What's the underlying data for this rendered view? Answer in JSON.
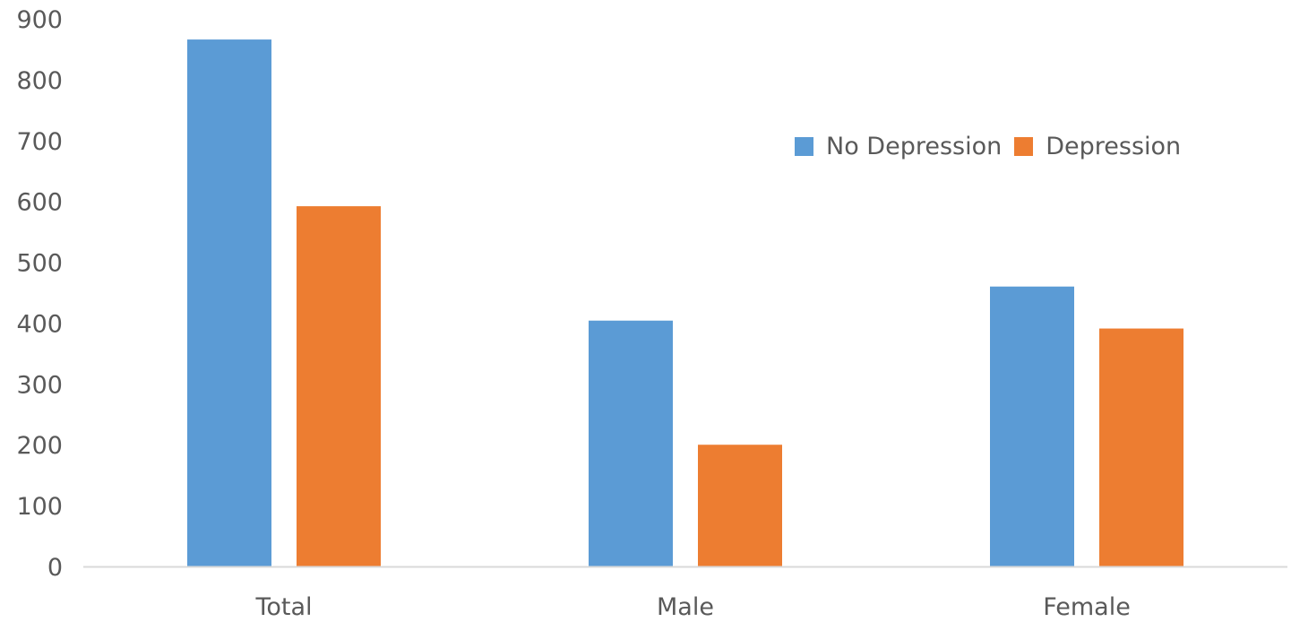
{
  "chart_data": {
    "type": "bar",
    "categories": [
      "Total",
      "Male",
      "Female"
    ],
    "series": [
      {
        "name": "No Depression",
        "values": [
          866,
          404,
          460
        ],
        "color": "#5b9bd5"
      },
      {
        "name": "Depression",
        "values": [
          592,
          200,
          391
        ],
        "color": "#ed7d31"
      }
    ],
    "title": "",
    "xlabel": "",
    "ylabel": "",
    "ylim": [
      0,
      900
    ],
    "yticks": [
      0,
      100,
      200,
      300,
      400,
      500,
      600,
      700,
      800,
      900
    ],
    "grid": false,
    "legend_position": "top-right",
    "axis_color": "#d9d9d9",
    "text_color": "#595959"
  }
}
